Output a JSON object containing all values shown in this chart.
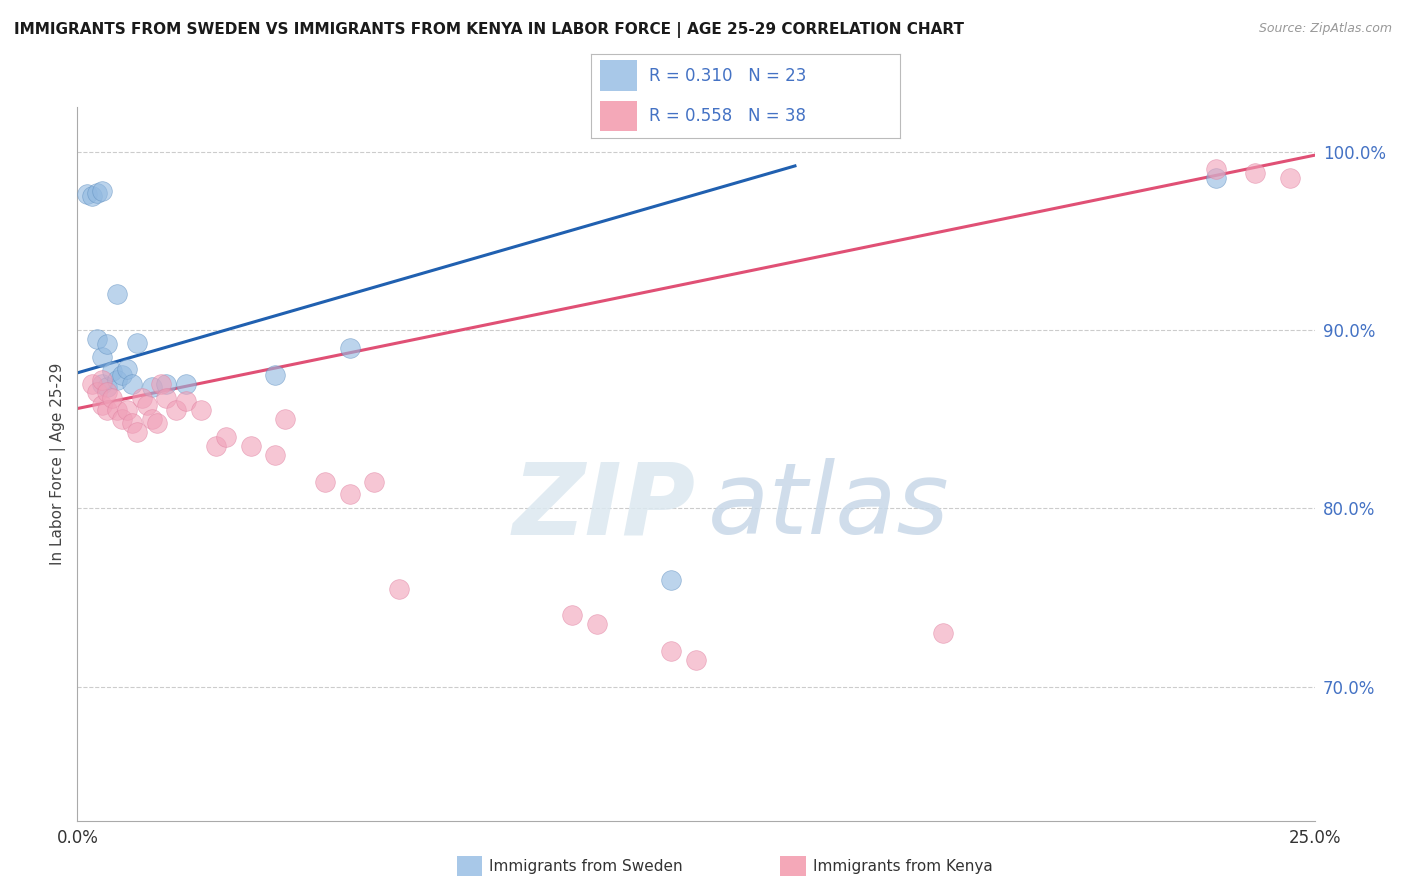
{
  "title": "IMMIGRANTS FROM SWEDEN VS IMMIGRANTS FROM KENYA IN LABOR FORCE | AGE 25-29 CORRELATION CHART",
  "source": "Source: ZipAtlas.com",
  "ylabel": "In Labor Force | Age 25-29",
  "xmin": 0.0,
  "xmax": 0.25,
  "ymin": 0.625,
  "ymax": 1.025,
  "y_ticks": [
    0.7,
    0.8,
    0.9,
    1.0
  ],
  "y_tick_labels": [
    "70.0%",
    "80.0%",
    "90.0%",
    "100.0%"
  ],
  "x_tick_labels": [
    "0.0%",
    "25.0%"
  ],
  "legend_label1": "R = 0.310   N = 23",
  "legend_label2": "R = 0.558   N = 38",
  "legend_color1": "#a8c8e8",
  "legend_color2": "#f4a8b8",
  "scatter_color_sweden": "#90b8e0",
  "scatter_color_kenya": "#f0a0b8",
  "line_color_sweden": "#2060b0",
  "line_color_kenya": "#e05075",
  "sweden_line_x": [
    0.0,
    0.145
  ],
  "sweden_line_y": [
    0.876,
    0.992
  ],
  "kenya_line_x": [
    0.0,
    0.25
  ],
  "kenya_line_y": [
    0.856,
    0.998
  ],
  "sweden_x": [
    0.002,
    0.003,
    0.004,
    0.004,
    0.005,
    0.005,
    0.005,
    0.006,
    0.006,
    0.007,
    0.008,
    0.008,
    0.009,
    0.01,
    0.011,
    0.012,
    0.015,
    0.018,
    0.022,
    0.04,
    0.055,
    0.12,
    0.23
  ],
  "sweden_y": [
    0.976,
    0.975,
    0.977,
    0.895,
    0.978,
    0.885,
    0.87,
    0.892,
    0.868,
    0.877,
    0.872,
    0.92,
    0.875,
    0.878,
    0.87,
    0.893,
    0.868,
    0.87,
    0.87,
    0.875,
    0.89,
    0.76,
    0.985
  ],
  "kenya_x": [
    0.003,
    0.004,
    0.005,
    0.005,
    0.006,
    0.006,
    0.007,
    0.008,
    0.009,
    0.01,
    0.011,
    0.012,
    0.013,
    0.014,
    0.015,
    0.016,
    0.017,
    0.018,
    0.02,
    0.022,
    0.025,
    0.028,
    0.03,
    0.035,
    0.04,
    0.042,
    0.05,
    0.055,
    0.06,
    0.065,
    0.1,
    0.105,
    0.12,
    0.125,
    0.175,
    0.23,
    0.238,
    0.245
  ],
  "kenya_y": [
    0.87,
    0.865,
    0.872,
    0.858,
    0.865,
    0.855,
    0.862,
    0.855,
    0.85,
    0.855,
    0.848,
    0.843,
    0.862,
    0.858,
    0.85,
    0.848,
    0.87,
    0.862,
    0.855,
    0.86,
    0.855,
    0.835,
    0.84,
    0.835,
    0.83,
    0.85,
    0.815,
    0.808,
    0.815,
    0.755,
    0.74,
    0.735,
    0.72,
    0.715,
    0.73,
    0.99,
    0.988,
    0.985
  ],
  "bottom_legend_sweden": "Immigrants from Sweden",
  "bottom_legend_kenya": "Immigrants from Kenya",
  "watermark_zip": "ZIP",
  "watermark_atlas": "atlas"
}
